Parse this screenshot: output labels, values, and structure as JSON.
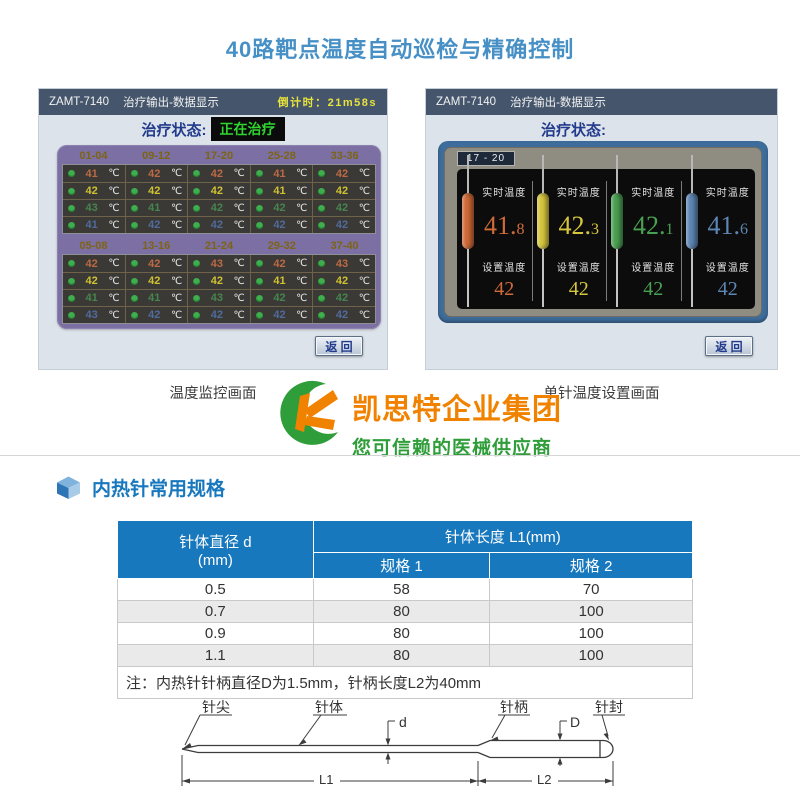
{
  "page": {
    "title": "40路靶点温度自动巡检与精确控制"
  },
  "left_screen": {
    "device": "ZAMT-7140",
    "subtitle": "治疗输出-数据显示",
    "countdown_label": "倒计时：",
    "countdown_value": "21m58s",
    "status_label": "治疗状态:",
    "status_value": "正在治疗",
    "unit": "℃",
    "back_label": "返 回",
    "caption": "温度监控画面",
    "row_colors": [
      "#bc6a44",
      "#cfc232",
      "#46854e",
      "#4f6c9c"
    ],
    "groups": [
      {
        "headers": [
          "01-04",
          "09-12",
          "17-20",
          "25-28",
          "33-36"
        ],
        "rows": [
          [
            41,
            42,
            42,
            41,
            42
          ],
          [
            42,
            42,
            42,
            41,
            42
          ],
          [
            43,
            41,
            42,
            42,
            42
          ],
          [
            41,
            42,
            42,
            42,
            42
          ]
        ]
      },
      {
        "headers": [
          "05-08",
          "13-16",
          "21-24",
          "29-32",
          "37-40"
        ],
        "rows": [
          [
            42,
            42,
            43,
            42,
            43
          ],
          [
            42,
            42,
            42,
            41,
            42
          ],
          [
            41,
            41,
            43,
            42,
            42
          ],
          [
            43,
            42,
            42,
            42,
            42
          ]
        ]
      }
    ]
  },
  "right_screen": {
    "device": "ZAMT-7140",
    "subtitle": "治疗输出-数据显示",
    "status_label": "治疗状态:",
    "tab": "17 - 20",
    "realtime_label": "实时温度",
    "set_label": "设置温度",
    "back_label": "返 回",
    "caption": "单针温度设置画面",
    "needles": [
      {
        "color": "#d06a38",
        "realtime": "41.8",
        "set": "42"
      },
      {
        "color": "#d6c63e",
        "realtime": "42.3",
        "set": "42"
      },
      {
        "color": "#4aa052",
        "realtime": "42.1",
        "set": "42"
      },
      {
        "color": "#5e86b4",
        "realtime": "41.6",
        "set": "42"
      }
    ]
  },
  "brand": {
    "name": "凯思特企业集团",
    "tagline": "您可信赖的医械供应商",
    "orange": "#f08200",
    "green": "#2f9e3a"
  },
  "spec_section": {
    "heading": "内热针常用规格",
    "table": {
      "col1_header_line1": "针体直径 d",
      "col1_header_line2": "(mm)",
      "col2_header": "针体长度 L1(mm)",
      "sub_headers": [
        "规格 1",
        "规格 2"
      ],
      "rows": [
        [
          "0.5",
          "58",
          "70"
        ],
        [
          "0.7",
          "80",
          "100"
        ],
        [
          "0.9",
          "80",
          "100"
        ],
        [
          "1.1",
          "80",
          "100"
        ]
      ],
      "note": "注：内热针针柄直径D为1.5mm，针柄长度L2为40mm"
    }
  },
  "diagram": {
    "labels": {
      "tip": "针尖",
      "body": "针体",
      "d": "d",
      "handle": "针柄",
      "D": "D",
      "seal": "针封",
      "l1": "L1",
      "l2": "L2"
    }
  }
}
